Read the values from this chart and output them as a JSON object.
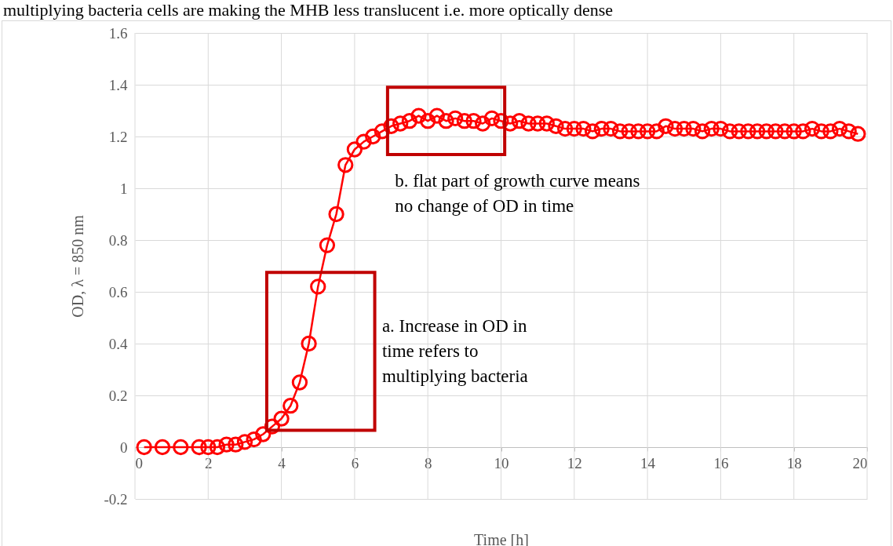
{
  "chart_data": {
    "type": "line",
    "xlabel": "Time [h]",
    "ylabel": "OD, λ = 850 nm",
    "x": [
      0.25,
      0.75,
      1.25,
      1.75,
      2.0,
      2.25,
      2.5,
      2.75,
      3.0,
      3.25,
      3.5,
      3.75,
      4.0,
      4.25,
      4.5,
      4.75,
      5.0,
      5.25,
      5.5,
      5.75,
      6.0,
      6.25,
      6.5,
      6.75,
      7.0,
      7.25,
      7.5,
      7.75,
      8.0,
      8.25,
      8.5,
      8.75,
      9.0,
      9.25,
      9.5,
      9.75,
      10.0,
      10.25,
      10.5,
      10.75,
      11.0,
      11.25,
      11.5,
      11.75,
      12.0,
      12.25,
      12.5,
      12.75,
      13.0,
      13.25,
      13.5,
      13.75,
      14.0,
      14.25,
      14.5,
      14.75,
      15.0,
      15.25,
      15.5,
      15.75,
      16.0,
      16.25,
      16.5,
      16.75,
      17.0,
      17.25,
      17.5,
      17.75,
      18.0,
      18.25,
      18.5,
      18.75,
      19.0,
      19.25,
      19.5,
      19.75
    ],
    "series": [
      {
        "color": "#ff0000",
        "values": [
          0,
          0,
          0,
          0,
          0,
          0,
          0.01,
          0.01,
          0.02,
          0.03,
          0.05,
          0.08,
          0.11,
          0.16,
          0.25,
          0.4,
          0.62,
          0.78,
          0.9,
          1.09,
          1.15,
          1.18,
          1.2,
          1.22,
          1.24,
          1.25,
          1.26,
          1.28,
          1.26,
          1.28,
          1.26,
          1.27,
          1.26,
          1.26,
          1.25,
          1.27,
          1.26,
          1.25,
          1.26,
          1.25,
          1.25,
          1.25,
          1.24,
          1.23,
          1.23,
          1.23,
          1.22,
          1.23,
          1.23,
          1.22,
          1.22,
          1.22,
          1.22,
          1.22,
          1.24,
          1.23,
          1.23,
          1.23,
          1.22,
          1.23,
          1.23,
          1.22,
          1.22,
          1.22,
          1.22,
          1.22,
          1.22,
          1.22,
          1.22,
          1.22,
          1.23,
          1.22,
          1.22,
          1.23,
          1.22,
          1.21
        ]
      }
    ],
    "xlim": [
      0,
      20
    ],
    "xticks": [
      0,
      2,
      4,
      6,
      8,
      10,
      12,
      14,
      16,
      18,
      20
    ],
    "ylim": [
      -0.2,
      1.6
    ],
    "yticks": [
      -0.2,
      0,
      0.2,
      0.4,
      0.6,
      0.8,
      1,
      1.2,
      1.4,
      1.6
    ],
    "grid": true,
    "marker": "circle",
    "line_style": "solid",
    "annotations": [
      "multiplying bacteria cells are making the MHB less translucent i.e. more optically dense",
      "a. Increase in OD in\ntime refers to\nmultiplying bacteria",
      "b.  flat part of growth curve means\nno change of OD in time"
    ]
  }
}
